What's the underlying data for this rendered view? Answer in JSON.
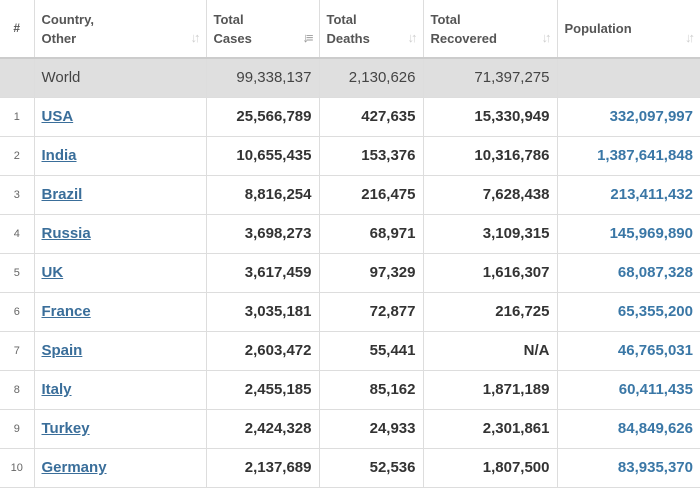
{
  "headers": {
    "num": "#",
    "country_line1": "Country,",
    "country_line2": "Other",
    "cases_line1": "Total",
    "cases_line2": "Cases",
    "deaths_line1": "Total",
    "deaths_line2": "Deaths",
    "recovered_line1": "Total",
    "recovered_line2": "Recovered",
    "population": "Population",
    "sort_glyph": "↓↑",
    "sort_active_glyph": "↓≡"
  },
  "world": {
    "label": "World",
    "total_cases": "99,338,137",
    "total_deaths": "2,130,626",
    "total_recovered": "71,397,275",
    "population": ""
  },
  "rows": [
    {
      "num": "1",
      "country": "USA",
      "cases": "25,566,789",
      "deaths": "427,635",
      "recovered": "15,330,949",
      "population": "332,097,997"
    },
    {
      "num": "2",
      "country": "India",
      "cases": "10,655,435",
      "deaths": "153,376",
      "recovered": "10,316,786",
      "population": "1,387,641,848"
    },
    {
      "num": "3",
      "country": "Brazil",
      "cases": "8,816,254",
      "deaths": "216,475",
      "recovered": "7,628,438",
      "population": "213,411,432"
    },
    {
      "num": "4",
      "country": "Russia",
      "cases": "3,698,273",
      "deaths": "68,971",
      "recovered": "3,109,315",
      "population": "145,969,890"
    },
    {
      "num": "5",
      "country": "UK",
      "cases": "3,617,459",
      "deaths": "97,329",
      "recovered": "1,616,307",
      "population": "68,087,328"
    },
    {
      "num": "6",
      "country": "France",
      "cases": "3,035,181",
      "deaths": "72,877",
      "recovered": "216,725",
      "population": "65,355,200"
    },
    {
      "num": "7",
      "country": "Spain",
      "cases": "2,603,472",
      "deaths": "55,441",
      "recovered": "N/A",
      "population": "46,765,031"
    },
    {
      "num": "8",
      "country": "Italy",
      "cases": "2,455,185",
      "deaths": "85,162",
      "recovered": "1,871,189",
      "population": "60,411,435"
    },
    {
      "num": "9",
      "country": "Turkey",
      "cases": "2,424,328",
      "deaths": "24,933",
      "recovered": "2,301,861",
      "population": "84,849,626"
    },
    {
      "num": "10",
      "country": "Germany",
      "cases": "2,137,689",
      "deaths": "52,536",
      "recovered": "1,807,500",
      "population": "83,935,370"
    }
  ]
}
